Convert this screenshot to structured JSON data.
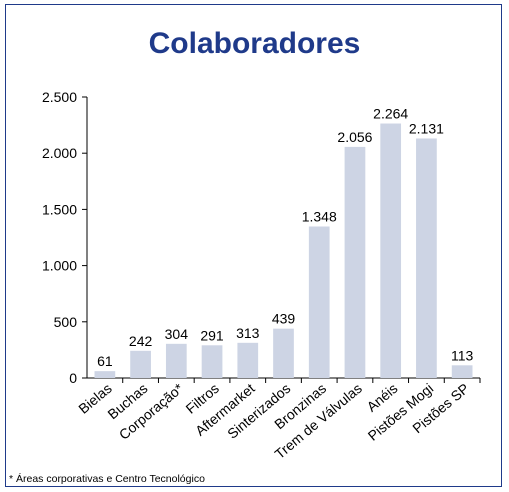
{
  "title": "Colaboradores",
  "footnote": "* Áreas corporativas e Centro Tecnológico",
  "chart_data": {
    "type": "bar",
    "title": "Colaboradores",
    "categories": [
      "Bielas",
      "Buchas",
      "Corporação*",
      "Filtros",
      "Aftermarket",
      "Sinterizados",
      "Bronzinas",
      "Trem de Válvulas",
      "Anéis",
      "Pistões Mogi",
      "Pistões SP"
    ],
    "values": [
      61,
      242,
      304,
      291,
      313,
      439,
      1348,
      2056,
      2264,
      2131,
      113
    ],
    "value_labels": [
      "61",
      "242",
      "304",
      "291",
      "313",
      "439",
      "1.348",
      "2.056",
      "2.264",
      "2.131",
      "113"
    ],
    "yticks": [
      0,
      500,
      1000,
      1500,
      2000,
      2500
    ],
    "ytick_labels": [
      "0",
      "500",
      "1.000",
      "1.500",
      "2.000",
      "2.500"
    ],
    "ylim": [
      0,
      2500
    ],
    "xlabel": "",
    "ylabel": "",
    "grid": false,
    "bar_color": "#cdd4e4",
    "title_color": "#1f3a8a"
  }
}
